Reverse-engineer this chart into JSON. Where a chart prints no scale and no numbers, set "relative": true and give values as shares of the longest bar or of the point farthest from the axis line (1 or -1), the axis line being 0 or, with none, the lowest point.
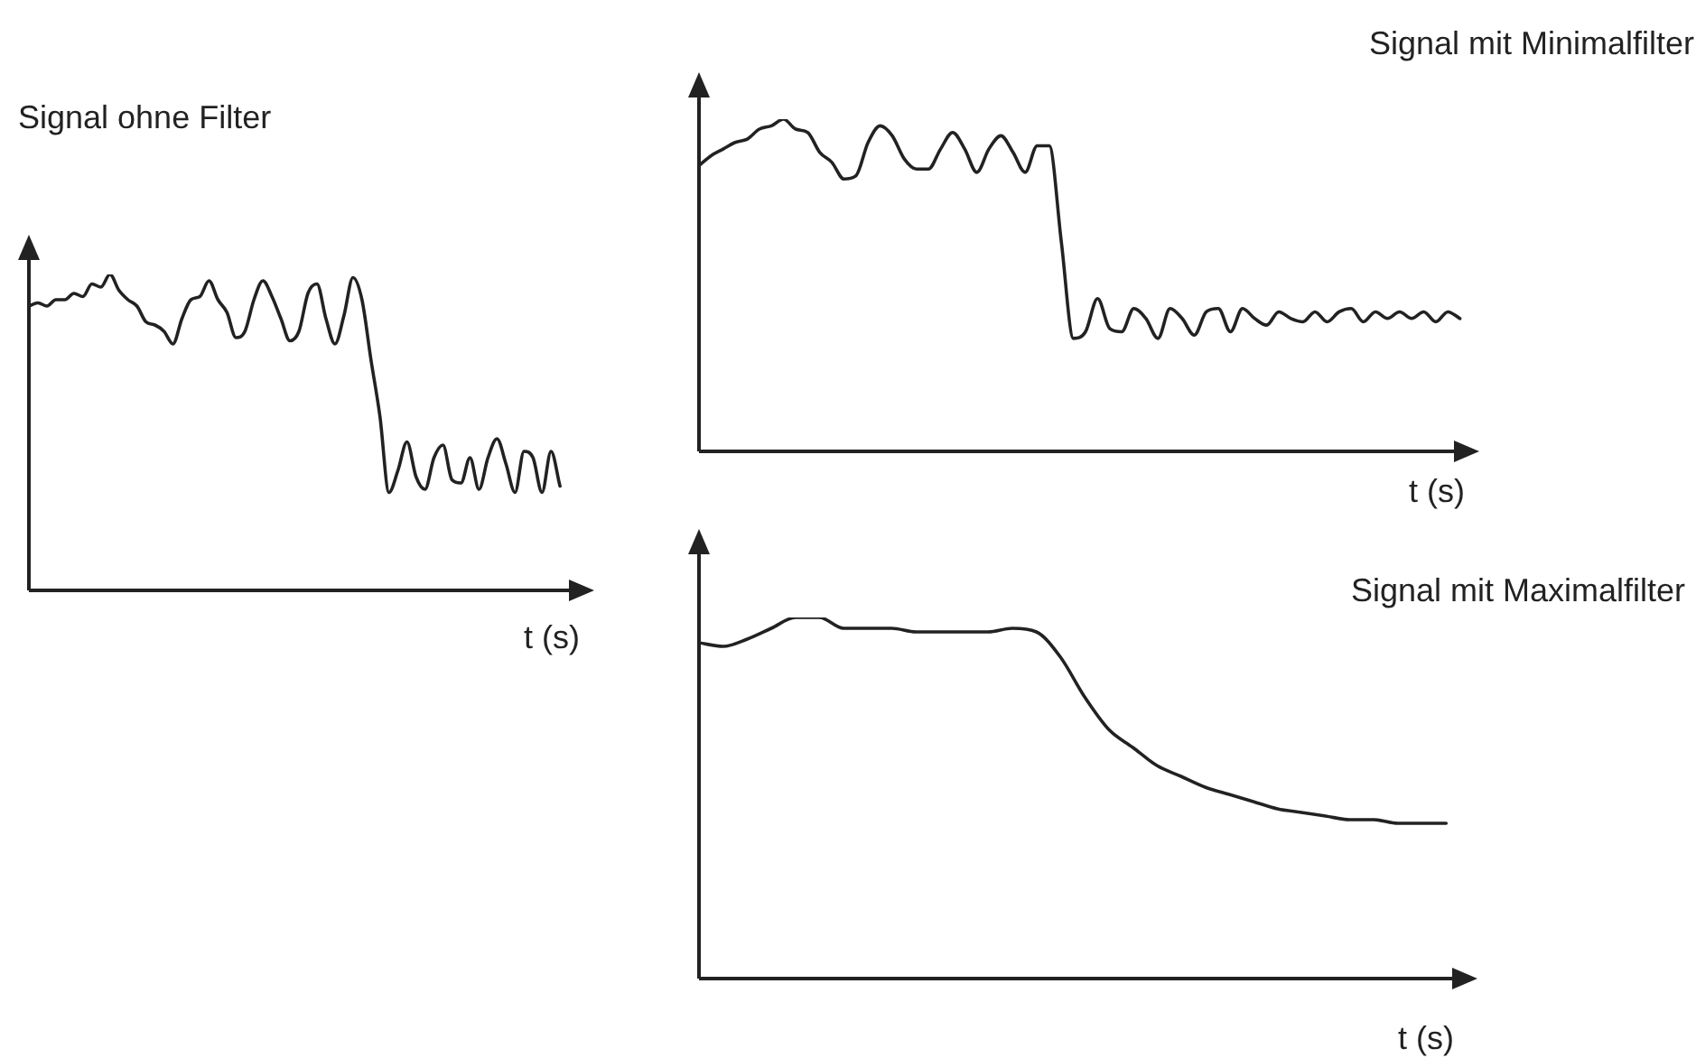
{
  "chart_data": [
    {
      "type": "line",
      "title": "Signal ohne Filter",
      "xlabel": "t (s)",
      "relative": true,
      "marker": "none",
      "color": "#222222",
      "categories": [
        null,
        null,
        null,
        null,
        null,
        null,
        null,
        null,
        null,
        null,
        null,
        null,
        null,
        null,
        null,
        null,
        null,
        null,
        null,
        null,
        null,
        null,
        null,
        null,
        null,
        null,
        null,
        null,
        null,
        null,
        null,
        null,
        null,
        null,
        null,
        null,
        null,
        null,
        null,
        null,
        null,
        null,
        null,
        null,
        null,
        null,
        null,
        null,
        null,
        null,
        null,
        null,
        null,
        null,
        null,
        null,
        null,
        null,
        null,
        null,
        null,
        null,
        null
      ],
      "values": [
        0.9,
        0.91,
        0.9,
        0.92,
        0.92,
        0.94,
        0.93,
        0.97,
        0.96,
        1,
        0.95,
        0.92,
        0.9,
        0.85,
        0.84,
        0.82,
        0.78,
        0.86,
        0.92,
        0.93,
        0.98,
        0.92,
        0.88,
        0.8,
        0.82,
        0.92,
        0.98,
        0.93,
        0.86,
        0.79,
        0.82,
        0.94,
        0.97,
        0.86,
        0.78,
        0.87,
        0.99,
        0.92,
        0.73,
        0.55,
        0.31,
        0.38,
        0.47,
        0.36,
        0.32,
        0.42,
        0.46,
        0.35,
        0.34,
        0.42,
        0.32,
        0.42,
        0.48,
        0.4,
        0.31,
        0.44,
        0.42,
        0.31,
        0.44,
        0.33,
        null,
        null,
        null
      ]
    },
    {
      "type": "line",
      "title": "Signal mit Minimalfilter",
      "xlabel": "t (s)",
      "relative": true,
      "marker": "none",
      "color": "#222222",
      "categories": [
        null,
        null,
        null,
        null,
        null,
        null,
        null,
        null,
        null,
        null,
        null,
        null,
        null,
        null,
        null,
        null,
        null,
        null,
        null,
        null,
        null,
        null,
        null,
        null,
        null,
        null,
        null,
        null,
        null,
        null,
        null,
        null,
        null,
        null,
        null,
        null,
        null,
        null,
        null,
        null,
        null,
        null,
        null,
        null,
        null,
        null,
        null,
        null,
        null,
        null,
        null,
        null,
        null,
        null,
        null,
        null,
        null,
        null,
        null,
        null,
        null,
        null,
        null,
        null,
        null
      ],
      "values": [
        0.86,
        0.89,
        0.91,
        0.93,
        0.94,
        0.97,
        0.98,
        1,
        0.97,
        0.96,
        0.9,
        0.87,
        0.82,
        0.83,
        0.93,
        0.98,
        0.95,
        0.88,
        0.85,
        0.85,
        0.91,
        0.96,
        0.91,
        0.84,
        0.91,
        0.95,
        0.9,
        0.84,
        0.92,
        0.92,
        0.63,
        0.34,
        0.36,
        0.46,
        0.37,
        0.36,
        0.43,
        0.4,
        0.34,
        0.43,
        0.4,
        0.35,
        0.42,
        0.43,
        0.36,
        0.43,
        0.4,
        0.38,
        0.42,
        0.4,
        0.39,
        0.42,
        0.39,
        0.42,
        0.43,
        0.39,
        0.42,
        0.4,
        0.42,
        0.4,
        0.42,
        0.39,
        0.42,
        0.4,
        null
      ]
    },
    {
      "type": "line",
      "title": "Signal mit Maximalfilter",
      "xlabel": "t (s)",
      "relative": true,
      "marker": "none",
      "color": "#222222",
      "categories": [
        null,
        null,
        null,
        null,
        null,
        null,
        null,
        null,
        null,
        null,
        null,
        null,
        null,
        null,
        null,
        null,
        null,
        null,
        null,
        null,
        null,
        null,
        null,
        null,
        null,
        null,
        null,
        null,
        null,
        null,
        null,
        null,
        null
      ],
      "values": [
        0.93,
        0.92,
        0.94,
        0.97,
        1,
        1,
        0.97,
        0.97,
        0.97,
        0.96,
        0.96,
        0.96,
        0.96,
        0.97,
        0.96,
        0.89,
        0.78,
        0.69,
        0.64,
        0.59,
        0.56,
        0.53,
        0.51,
        0.49,
        0.47,
        0.46,
        0.45,
        0.44,
        0.44,
        0.43,
        0.43,
        0.43,
        null
      ]
    }
  ]
}
